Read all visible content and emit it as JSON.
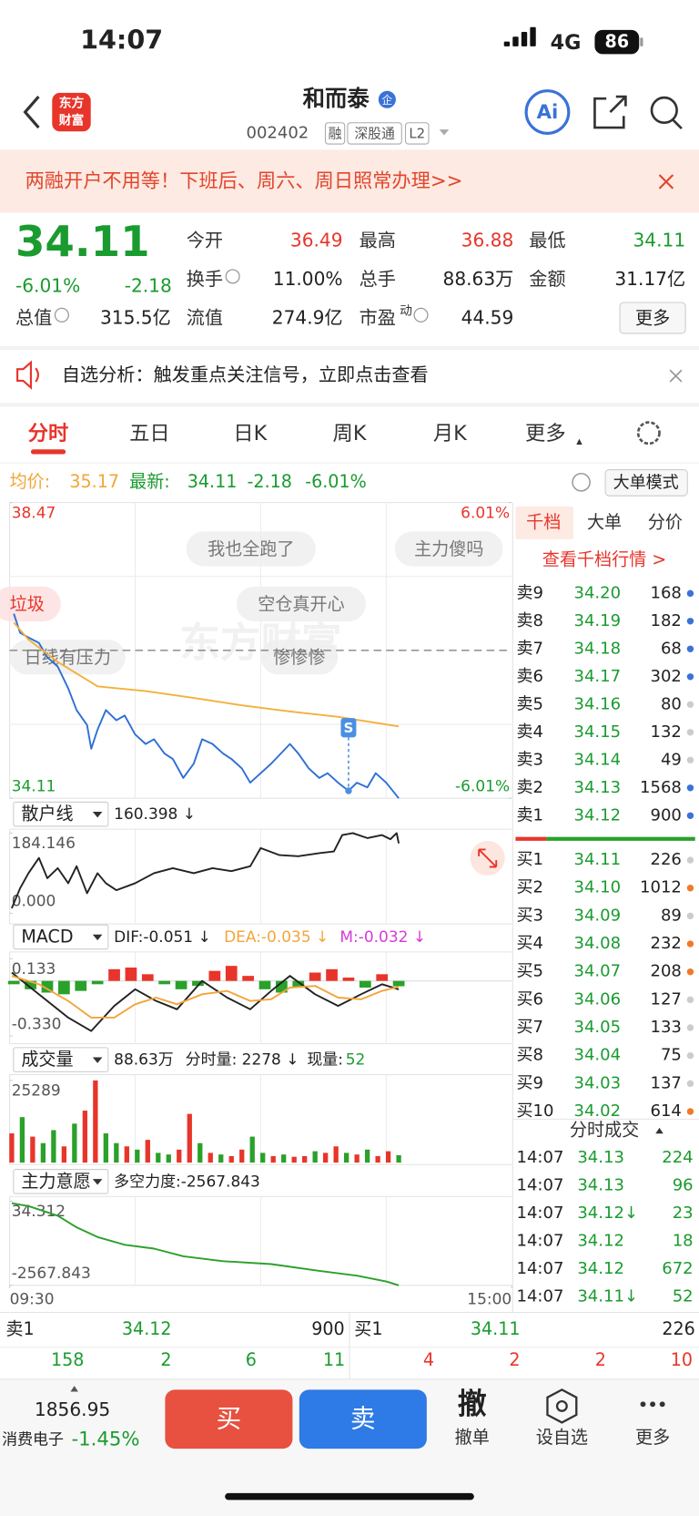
{
  "status_bar": {
    "time": "14:07",
    "network": "4G",
    "battery": "86"
  },
  "header": {
    "logo": [
      "东方",
      "财富"
    ],
    "title": "和而泰",
    "badge": "企",
    "code": "002402",
    "tags": [
      "融",
      "深股通",
      "L2"
    ],
    "ai": "Ai"
  },
  "banner": {
    "text": "两融开户不用等！下班后、周六、周日照常办理>>"
  },
  "quote": {
    "price": "34.11",
    "change_pct": "-6.01%",
    "change": "-2.18",
    "color": "#1a9b2f",
    "fields": [
      {
        "label": "今开",
        "value": "36.49",
        "color": "#e8352b"
      },
      {
        "label": "最高",
        "value": "36.88",
        "color": "#e8352b"
      },
      {
        "label": "最低",
        "value": "34.11",
        "color": "#1a9b2f"
      },
      {
        "label": "换手",
        "value": "11.00%",
        "color": "#222222",
        "info_icon": true
      },
      {
        "label": "总手",
        "value": "88.63万",
        "color": "#222222"
      },
      {
        "label": "金额",
        "value": "31.17亿",
        "color": "#222222"
      },
      {
        "label": "总值",
        "value": "315.5亿",
        "color": "#222222",
        "info_icon": true
      },
      {
        "label": "流值",
        "value": "274.9亿",
        "color": "#222222"
      },
      {
        "label": "市盈",
        "sup": "动",
        "value": "44.59",
        "color": "#222222",
        "info_icon": true
      }
    ],
    "more": "更多"
  },
  "notice": {
    "text": "自选分析：触发重点关注信号，立即点击查看"
  },
  "tabs": {
    "items": [
      "分时",
      "五日",
      "日K",
      "周K",
      "月K",
      "更多"
    ],
    "active": 0
  },
  "summary": {
    "avg_label": "均价:",
    "avg": "35.17",
    "latest_label": "最新:",
    "latest": "34.11",
    "change": "-2.18",
    "change_pct": "-6.01%",
    "mode": "大单模式"
  },
  "chart_data": [
    {
      "type": "line",
      "xlim": [
        0,
        240
      ],
      "ylim": [
        34.11,
        38.47
      ],
      "yticks": [
        34.11,
        38.47
      ],
      "y2lim": [
        -6.01,
        6.01
      ],
      "y2ticks": [
        {
          "value": -6.01,
          "label": "-6.01%"
        },
        {
          "value": 6.01,
          "label": "6.01%"
        }
      ],
      "ref_line": 36.29,
      "up_color": "#e8352b",
      "down_color": "#1a9b2f",
      "watermark": "东方财富",
      "comments": [
        "我也全跑了",
        "主力傻吗",
        "垃圾",
        "空仓真开心",
        "日线有压力",
        "惨惨惨"
      ],
      "signal": {
        "label": "S",
        "x": 162,
        "value": 34.22
      },
      "series": [
        {
          "color": "#2f6fd6",
          "x": [
            2,
            5,
            9,
            14,
            18,
            23,
            28,
            32,
            37,
            39,
            42,
            46,
            51,
            55,
            60,
            65,
            69,
            74,
            78,
            83,
            88,
            92,
            97,
            102,
            106,
            111,
            115,
            120,
            125,
            134,
            138,
            143,
            148,
            152,
            157,
            162,
            166,
            171,
            175,
            180,
            186
          ],
          "values": [
            36.83,
            36.55,
            36.48,
            36.4,
            36.19,
            36.05,
            35.73,
            35.41,
            35.19,
            34.84,
            35.12,
            35.41,
            35.26,
            35.33,
            35.05,
            34.91,
            34.98,
            34.77,
            34.69,
            34.41,
            34.62,
            34.98,
            34.91,
            34.77,
            34.69,
            34.55,
            34.34,
            34.48,
            34.62,
            34.91,
            34.77,
            34.55,
            34.41,
            34.48,
            34.34,
            34.22,
            34.34,
            34.27,
            34.48,
            34.34,
            34.11
          ]
        },
        {
          "color": "#f3b13c",
          "x": [
            2,
            9,
            23,
            42,
            65,
            88,
            111,
            134,
            157,
            186
          ],
          "values": [
            36.7,
            36.45,
            36.12,
            35.76,
            35.69,
            35.59,
            35.48,
            35.39,
            35.31,
            35.17
          ]
        }
      ]
    },
    {
      "type": "line",
      "indicator": "散户线",
      "readouts": [
        {
          "text": "160.398 ↓",
          "color": "#222222"
        }
      ],
      "xlim": [
        0,
        240
      ],
      "ylim": [
        0,
        184.146
      ],
      "yticks": [
        {
          "value": 0,
          "label": "0.000"
        },
        184.146
      ],
      "series": [
        {
          "color": "#222222",
          "x": [
            1,
            5,
            9,
            14,
            18,
            23,
            28,
            32,
            37,
            42,
            46,
            51,
            60,
            69,
            78,
            88,
            97,
            106,
            115,
            120,
            129,
            138,
            148,
            155,
            159,
            164,
            171,
            178,
            182,
            185,
            186
          ],
          "values": [
            11.5,
            57.5,
            92,
            127,
            80.5,
            103.6,
            69,
            108,
            46,
            92,
            69,
            53,
            69,
            92,
            103.6,
            92,
            103.6,
            96.7,
            108,
            149.6,
            133.5,
            131,
            138,
            142,
            179.5,
            184,
            172.6,
            179.5,
            170,
            184,
            160.398
          ]
        }
      ]
    },
    {
      "type": "line",
      "indicator": "MACD",
      "readouts": [
        {
          "text": "DIF:-0.051 ↓",
          "color": "#222222"
        },
        {
          "text": "DEA:-0.035 ↓",
          "color": "#f3a53a"
        },
        {
          "text": "M:-0.032 ↓",
          "color": "#d63ad6"
        }
      ],
      "xlim": [
        0,
        240
      ],
      "ylim": [
        -0.33,
        0.133
      ],
      "yticks": [
        {
          "value": -0.33,
          "label": "-0.330"
        },
        0.133
      ],
      "histogram": {
        "up_color": "#e8352b",
        "down_color": "#2aa12a",
        "x": [
          2,
          10,
          18,
          26,
          34,
          42,
          50,
          58,
          66,
          74,
          82,
          90,
          98,
          106,
          114,
          122,
          130,
          138,
          146,
          154,
          162,
          170,
          178,
          186
        ],
        "values": [
          -0.02,
          -0.05,
          -0.07,
          -0.08,
          -0.06,
          -0.02,
          0.07,
          0.08,
          0.04,
          -0.02,
          -0.05,
          -0.03,
          0.06,
          0.09,
          0.03,
          -0.05,
          -0.07,
          -0.04,
          0.05,
          0.07,
          0.02,
          -0.04,
          0.04,
          -0.032
        ]
      },
      "series": [
        {
          "color": "#222222",
          "x": [
            1,
            14,
            28,
            39,
            50,
            60,
            70,
            80,
            92,
            104,
            115,
            125,
            134,
            146,
            157,
            168,
            178,
            186
          ],
          "values": [
            0.05,
            -0.08,
            -0.22,
            -0.3,
            -0.15,
            -0.05,
            -0.12,
            -0.17,
            0.0,
            -0.1,
            -0.17,
            -0.06,
            0.03,
            -0.08,
            -0.15,
            -0.08,
            -0.02,
            -0.051
          ]
        },
        {
          "color": "#f3a53a",
          "x": [
            1,
            14,
            28,
            39,
            50,
            60,
            70,
            80,
            92,
            104,
            115,
            125,
            134,
            146,
            157,
            168,
            178,
            186
          ],
          "values": [
            0.03,
            -0.02,
            -0.12,
            -0.22,
            -0.22,
            -0.14,
            -0.1,
            -0.14,
            -0.08,
            -0.06,
            -0.12,
            -0.11,
            -0.04,
            -0.03,
            -0.1,
            -0.11,
            -0.06,
            -0.035
          ]
        }
      ]
    },
    {
      "type": "bar",
      "indicator": "成交量",
      "readouts": [
        {
          "text": "88.63万",
          "color": "#222222"
        },
        {
          "text": "分时量: 2278 ↓",
          "color": "#222222"
        },
        {
          "text": "现量:",
          "color": "#222222"
        },
        {
          "text": "52",
          "color": "#1a9b2f"
        }
      ],
      "xlim": [
        0,
        240
      ],
      "ylim": [
        0,
        25289
      ],
      "yticks": [
        25289
      ],
      "x": [
        1,
        6,
        11,
        16,
        21,
        26,
        31,
        36,
        41,
        46,
        51,
        56,
        61,
        66,
        71,
        76,
        81,
        86,
        91,
        96,
        101,
        106,
        111,
        116,
        121,
        126,
        131,
        136,
        141,
        146,
        151,
        156,
        161,
        166,
        171,
        176,
        181,
        186
      ],
      "values": [
        9000,
        14000,
        8000,
        6000,
        10000,
        5000,
        12000,
        16000,
        25289,
        9000,
        6000,
        5000,
        4000,
        7000,
        3000,
        2500,
        4000,
        15000,
        6000,
        3000,
        2500,
        2000,
        4000,
        8000,
        3000,
        2000,
        2500,
        1800,
        2000,
        3500,
        3000,
        5000,
        3000,
        2500,
        4000,
        2000,
        3500,
        2278
      ],
      "bar_colors": [
        "#e8352b",
        "#2aa12a",
        "#e8352b",
        "#2aa12a",
        "#2aa12a",
        "#e8352b",
        "#2aa12a",
        "#e8352b",
        "#e8352b",
        "#2aa12a",
        "#2aa12a",
        "#e8352b",
        "#2aa12a",
        "#e8352b",
        "#2aa12a",
        "#2aa12a",
        "#e8352b",
        "#e8352b",
        "#2aa12a",
        "#e8352b",
        "#2aa12a",
        "#e8352b",
        "#e8352b",
        "#2aa12a",
        "#2aa12a",
        "#e8352b",
        "#2aa12a",
        "#e8352b",
        "#e8352b",
        "#2aa12a",
        "#e8352b",
        "#e8352b",
        "#2aa12a",
        "#e8352b",
        "#2aa12a",
        "#e8352b",
        "#e8352b",
        "#2aa12a"
      ]
    },
    {
      "type": "line",
      "indicator": "主力意愿",
      "readouts": [
        {
          "text": "多空力度:-2567.843",
          "color": "#222222"
        }
      ],
      "xlim": [
        0,
        240
      ],
      "ylim": [
        -2567.843,
        34.312
      ],
      "yticks": [
        34.312,
        -2567.843
      ],
      "xticks": [
        {
          "value": 0,
          "label": "09:30"
        },
        {
          "value": 240,
          "label": "15:00"
        }
      ],
      "series": [
        {
          "color": "#2aa12a",
          "x": [
            1,
            9,
            23,
            32,
            42,
            55,
            69,
            83,
            102,
            125,
            148,
            166,
            180,
            186
          ],
          "values": [
            -25,
            -115,
            -414,
            -773,
            -1072,
            -1312,
            -1431,
            -1670,
            -1820,
            -1910,
            -2119,
            -2269,
            -2448,
            -2567.843
          ]
        }
      ]
    }
  ],
  "order_book": {
    "tabs": [
      "千档",
      "大单",
      "分价"
    ],
    "active": 0,
    "link": "查看千档行情 >",
    "price_color": "#1a9b2f",
    "asks": [
      {
        "label": "卖9",
        "price": "34.20",
        "volume": "168",
        "dot": "#3a72d8"
      },
      {
        "label": "卖8",
        "price": "34.19",
        "volume": "182",
        "dot": "#3a72d8"
      },
      {
        "label": "卖7",
        "price": "34.18",
        "volume": "68",
        "dot": "#3a72d8"
      },
      {
        "label": "卖6",
        "price": "34.17",
        "volume": "302",
        "dot": "#3a72d8"
      },
      {
        "label": "卖5",
        "price": "34.16",
        "volume": "80",
        "dot": "#cccccc"
      },
      {
        "label": "卖4",
        "price": "34.15",
        "volume": "132",
        "dot": "#cccccc"
      },
      {
        "label": "卖3",
        "price": "34.14",
        "volume": "49",
        "dot": "#cccccc"
      },
      {
        "label": "卖2",
        "price": "34.13",
        "volume": "1568",
        "dot": "#3a72d8"
      },
      {
        "label": "卖1",
        "price": "34.12",
        "volume": "900",
        "dot": "#3a72d8"
      }
    ],
    "bids": [
      {
        "label": "买1",
        "price": "34.11",
        "volume": "226",
        "dot": "#cccccc"
      },
      {
        "label": "买2",
        "price": "34.10",
        "volume": "1012",
        "dot": "#f07a2a"
      },
      {
        "label": "买3",
        "price": "34.09",
        "volume": "89",
        "dot": "#cccccc"
      },
      {
        "label": "买4",
        "price": "34.08",
        "volume": "232",
        "dot": "#f07a2a"
      },
      {
        "label": "买5",
        "price": "34.07",
        "volume": "208",
        "dot": "#f07a2a"
      },
      {
        "label": "买6",
        "price": "34.06",
        "volume": "127",
        "dot": "#cccccc"
      },
      {
        "label": "买7",
        "price": "34.05",
        "volume": "133",
        "dot": "#cccccc"
      },
      {
        "label": "买8",
        "price": "34.04",
        "volume": "75",
        "dot": "#cccccc"
      },
      {
        "label": "买9",
        "price": "34.03",
        "volume": "137",
        "dot": "#cccccc"
      },
      {
        "label": "买10",
        "price": "34.02",
        "volume": "614",
        "dot": "#f07a2a"
      }
    ]
  },
  "trades": {
    "title": "分时成交",
    "rows": [
      {
        "time": "14:07",
        "price": "34.13",
        "volume": "224",
        "color": "#1a9b2f"
      },
      {
        "time": "14:07",
        "price": "34.13",
        "volume": "96",
        "color": "#1a9b2f"
      },
      {
        "time": "14:07",
        "price": "34.12↓",
        "volume": "23",
        "color": "#1a9b2f"
      },
      {
        "time": "14:07",
        "price": "34.12",
        "volume": "18",
        "color": "#1a9b2f"
      },
      {
        "time": "14:07",
        "price": "34.12",
        "volume": "672",
        "color": "#1a9b2f"
      },
      {
        "time": "14:07",
        "price": "34.11↓",
        "volume": "52",
        "color": "#1a9b2f"
      }
    ]
  },
  "level1": {
    "ask": {
      "label": "卖1",
      "price": "34.12",
      "volume": "900"
    },
    "bid": {
      "label": "买1",
      "price": "34.11",
      "volume": "226"
    },
    "ask_counts": [
      "158",
      "2",
      "6",
      "11"
    ],
    "bid_counts": [
      "4",
      "2",
      "2",
      "10"
    ]
  },
  "nav": {
    "index_value": "1856.95",
    "index_name": "消费电子",
    "index_change": "-1.45%",
    "buy": "买",
    "sell": "卖",
    "cancel_icon": "撤",
    "cancel": "撤单",
    "watch": "设自选",
    "more": "更多"
  }
}
